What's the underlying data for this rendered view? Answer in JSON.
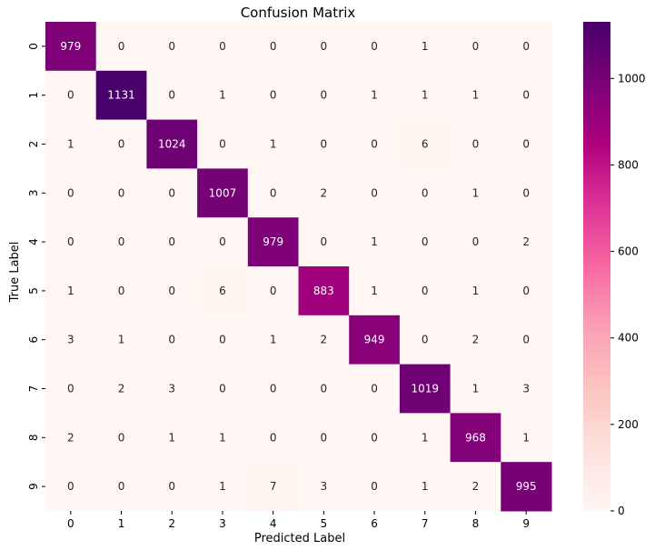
{
  "chart_data": {
    "type": "heatmap",
    "title": "Confusion Matrix",
    "xlabel": "Predicted Label",
    "ylabel": "True Label",
    "x_categories": [
      "0",
      "1",
      "2",
      "3",
      "4",
      "5",
      "6",
      "7",
      "8",
      "9"
    ],
    "y_categories": [
      "0",
      "1",
      "2",
      "3",
      "4",
      "5",
      "6",
      "7",
      "8",
      "9"
    ],
    "matrix": [
      [
        979,
        0,
        0,
        0,
        0,
        0,
        0,
        1,
        0,
        0
      ],
      [
        0,
        1131,
        0,
        1,
        0,
        0,
        1,
        1,
        1,
        0
      ],
      [
        1,
        0,
        1024,
        0,
        1,
        0,
        0,
        6,
        0,
        0
      ],
      [
        0,
        0,
        0,
        1007,
        0,
        2,
        0,
        0,
        1,
        0
      ],
      [
        0,
        0,
        0,
        0,
        979,
        0,
        1,
        0,
        0,
        2
      ],
      [
        1,
        0,
        0,
        6,
        0,
        883,
        1,
        0,
        1,
        0
      ],
      [
        3,
        1,
        0,
        0,
        1,
        2,
        949,
        0,
        2,
        0
      ],
      [
        0,
        2,
        3,
        0,
        0,
        0,
        0,
        1019,
        1,
        3
      ],
      [
        2,
        0,
        1,
        1,
        0,
        0,
        0,
        1,
        968,
        1
      ],
      [
        0,
        0,
        0,
        1,
        7,
        3,
        0,
        1,
        2,
        995
      ]
    ],
    "colorbar": {
      "min": 0,
      "max": 1131,
      "ticks": [
        0,
        200,
        400,
        600,
        800,
        1000
      ],
      "colors": [
        "#fff7f3",
        "#fde0dd",
        "#fcc5c0",
        "#fa9fb5",
        "#f768a1",
        "#dd3497",
        "#ae017e",
        "#7a0177",
        "#49006a"
      ]
    }
  }
}
